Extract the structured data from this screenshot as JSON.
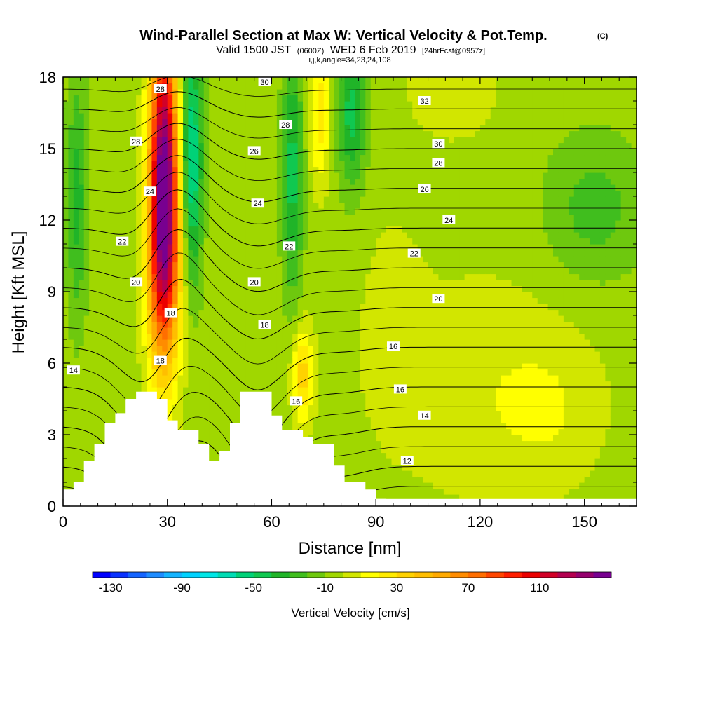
{
  "title": {
    "main": "Wind-Parallel Section at Max W: Vertical Velocity & Pot.Temp.",
    "main_mark": "(C)",
    "valid_prefix": "Valid 1500 JST",
    "valid_utc": "(0600Z)",
    "valid_date": "WED 6 Feb 2019",
    "fcst": "[24hrFcst@0957z]",
    "params": "i,j,k,angle=34,23,24,108"
  },
  "chart_data": {
    "type": "heatmap",
    "xlabel": "Distance [nm]",
    "ylabel": "Height [Kft MSL]",
    "xlim": [
      0,
      165
    ],
    "ylim": [
      0,
      18
    ],
    "xticks": [
      0,
      30,
      60,
      90,
      120,
      150
    ],
    "yticks": [
      0,
      3,
      6,
      9,
      12,
      15,
      18
    ],
    "xtick_labels": [
      "0",
      "30",
      "60",
      "90",
      "120",
      "150"
    ],
    "ytick_labels": [
      "0",
      "3",
      "6",
      "9",
      "12",
      "15",
      "18"
    ],
    "colorbar": {
      "label": "Vertical Velocity [cm/s]",
      "min": -140,
      "max": 150,
      "step": 10,
      "tick_values": [
        -130,
        -90,
        -50,
        -10,
        30,
        70,
        110
      ],
      "tick_labels": [
        "-130",
        "-90",
        "-50",
        "-10",
        "30",
        "70",
        "110"
      ],
      "colors": [
        "#0000ff",
        "#0a32ff",
        "#1464ff",
        "#1e8cff",
        "#14b4ff",
        "#00d2ff",
        "#00e6e6",
        "#00dcb4",
        "#00d278",
        "#10c850",
        "#20b428",
        "#40be1e",
        "#6ec80e",
        "#a0d700",
        "#d2e600",
        "#ffff00",
        "#ffeb00",
        "#ffd200",
        "#ffbe00",
        "#ffaa00",
        "#ff8c00",
        "#ff6e00",
        "#ff4600",
        "#ff1e00",
        "#eb0000",
        "#d20028",
        "#b40050",
        "#96006e",
        "#780090"
      ]
    },
    "terrain": [
      [
        0,
        0.7
      ],
      [
        3,
        0.7
      ],
      [
        3,
        1
      ],
      [
        6,
        1
      ],
      [
        6,
        1.9
      ],
      [
        9,
        1.9
      ],
      [
        9,
        2.6
      ],
      [
        12,
        2.6
      ],
      [
        12,
        3.5
      ],
      [
        15,
        3.5
      ],
      [
        15,
        3.9
      ],
      [
        18,
        3.9
      ],
      [
        18,
        4.5
      ],
      [
        21,
        4.5
      ],
      [
        21,
        4.8
      ],
      [
        27,
        4.8
      ],
      [
        27,
        4.5
      ],
      [
        30,
        4.5
      ],
      [
        30,
        3.6
      ],
      [
        33,
        3.6
      ],
      [
        33,
        3.2
      ],
      [
        39,
        3.2
      ],
      [
        39,
        2.6
      ],
      [
        42,
        2.6
      ],
      [
        42,
        1.9
      ],
      [
        45,
        1.9
      ],
      [
        45,
        2.3
      ],
      [
        48,
        2.3
      ],
      [
        48,
        3.5
      ],
      [
        51,
        3.5
      ],
      [
        51,
        4.8
      ],
      [
        60,
        4.8
      ],
      [
        60,
        3.8
      ],
      [
        63,
        3.8
      ],
      [
        63,
        3.2
      ],
      [
        69,
        3.2
      ],
      [
        69,
        2.9
      ],
      [
        72,
        2.9
      ],
      [
        72,
        2.6
      ],
      [
        78,
        2.6
      ],
      [
        78,
        1.7
      ],
      [
        81,
        1.7
      ],
      [
        81,
        1
      ],
      [
        87,
        1
      ],
      [
        87,
        0.7
      ],
      [
        90,
        0.7
      ],
      [
        90,
        0.3
      ],
      [
        93,
        0.3
      ],
      [
        93,
        0
      ]
    ],
    "updrafts": [
      {
        "x": 29,
        "z": 14.5,
        "width": 4,
        "depth": 6,
        "w": 130
      },
      {
        "x": 29,
        "z": 10,
        "width": 5,
        "depth": 5,
        "w": 70
      },
      {
        "x": 69,
        "z": 5.5,
        "width": 3,
        "depth": 2,
        "w": 40
      },
      {
        "x": 74,
        "z": 16.5,
        "width": 3,
        "depth": 3,
        "w": 30
      },
      {
        "x": 112,
        "z": 17.5,
        "width": 12,
        "depth": 2,
        "w": 15
      },
      {
        "x": 140,
        "z": 4,
        "width": 15,
        "depth": 3,
        "w": 10
      },
      {
        "x": 95,
        "z": 8,
        "width": 8,
        "depth": 4,
        "w": 10
      }
    ],
    "downdrafts": [
      {
        "x": 37,
        "z": 14.5,
        "width": 3,
        "depth": 5,
        "w": -60
      },
      {
        "x": 66,
        "z": 14,
        "width": 3,
        "depth": 5,
        "w": -40
      },
      {
        "x": 83,
        "z": 16.5,
        "width": 4,
        "depth": 3,
        "w": -40
      },
      {
        "x": 4,
        "z": 13,
        "width": 3,
        "depth": 5,
        "w": -30
      },
      {
        "x": 153,
        "z": 12.5,
        "width": 14,
        "depth": 3,
        "w": -20
      }
    ],
    "background_w": -5,
    "theta_levels": [
      12,
      14,
      16,
      18,
      20,
      22,
      24,
      26,
      28,
      30,
      32
    ],
    "contour_labels": [
      {
        "x": 28,
        "z": 17.5,
        "text": "28"
      },
      {
        "x": 58,
        "z": 17.8,
        "text": "30"
      },
      {
        "x": 104,
        "z": 17,
        "text": "32"
      },
      {
        "x": 21,
        "z": 15.3,
        "text": "28"
      },
      {
        "x": 64,
        "z": 16,
        "text": "28"
      },
      {
        "x": 108,
        "z": 15.2,
        "text": "30"
      },
      {
        "x": 55,
        "z": 14.9,
        "text": "26"
      },
      {
        "x": 108,
        "z": 14.4,
        "text": "28"
      },
      {
        "x": 25,
        "z": 13.2,
        "text": "24"
      },
      {
        "x": 56,
        "z": 12.7,
        "text": "24"
      },
      {
        "x": 104,
        "z": 13.3,
        "text": "26"
      },
      {
        "x": 111,
        "z": 12,
        "text": "24"
      },
      {
        "x": 17,
        "z": 11.1,
        "text": "22"
      },
      {
        "x": 65,
        "z": 10.9,
        "text": "22"
      },
      {
        "x": 101,
        "z": 10.6,
        "text": "22"
      },
      {
        "x": 21,
        "z": 9.4,
        "text": "20"
      },
      {
        "x": 55,
        "z": 9.4,
        "text": "20"
      },
      {
        "x": 108,
        "z": 8.7,
        "text": "20"
      },
      {
        "x": 31,
        "z": 8.1,
        "text": "18"
      },
      {
        "x": 58,
        "z": 7.6,
        "text": "18"
      },
      {
        "x": 95,
        "z": 6.7,
        "text": "16"
      },
      {
        "x": 28,
        "z": 6.1,
        "text": "18"
      },
      {
        "x": 3,
        "z": 5.7,
        "text": "14"
      },
      {
        "x": 97,
        "z": 4.9,
        "text": "16"
      },
      {
        "x": 67,
        "z": 4.4,
        "text": "16"
      },
      {
        "x": 104,
        "z": 3.8,
        "text": "14"
      },
      {
        "x": 99,
        "z": 1.9,
        "text": "12"
      }
    ]
  }
}
